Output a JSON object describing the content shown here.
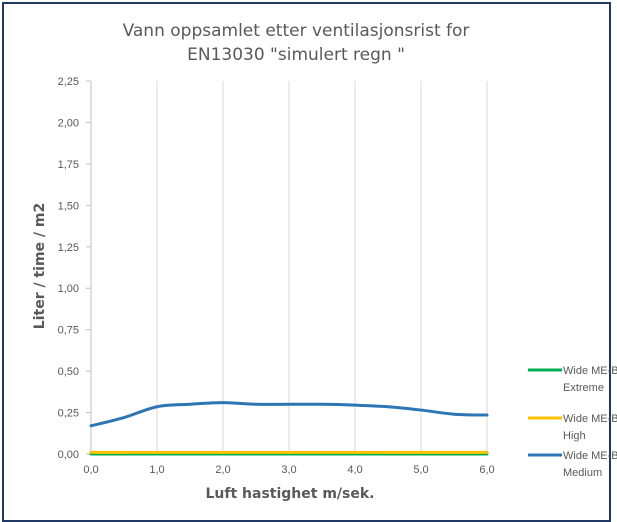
{
  "chart_data": {
    "type": "line",
    "title_lines": [
      "Vann oppsamlet etter ventilasjonsrist for",
      "EN13030 \"simulert regn \""
    ],
    "xlabel": "Luft hastighet m/sek.",
    "ylabel": "Liter / time / m2",
    "xlim": [
      0,
      6
    ],
    "ylim": [
      0,
      2.25
    ],
    "x_ticks": [
      "0,0",
      "1,0",
      "2,0",
      "3,0",
      "4,0",
      "5,0",
      "6,0"
    ],
    "y_ticks": [
      "0,00",
      "0,25",
      "0,50",
      "0,75",
      "1,00",
      "1,25",
      "1,50",
      "1,75",
      "2,00",
      "2,25"
    ],
    "grid": "vertical",
    "legend_position": "right",
    "series": [
      {
        "name_lines": [
          "Wide ME-B",
          "Extreme"
        ],
        "color": "#00b050",
        "x": [
          0,
          1,
          2,
          3,
          4,
          5,
          6
        ],
        "y": [
          0.0,
          0.0,
          0.0,
          0.0,
          0.0,
          0.0,
          0.0
        ]
      },
      {
        "name_lines": [
          "Wide ME-B",
          "High"
        ],
        "color": "#ffc000",
        "x": [
          0,
          1,
          2,
          3,
          4,
          5,
          6
        ],
        "y": [
          0.01,
          0.01,
          0.01,
          0.01,
          0.01,
          0.01,
          0.01
        ]
      },
      {
        "name_lines": [
          "Wide ME-B",
          "Medium"
        ],
        "color": "#2e75b6",
        "x": [
          0,
          0.5,
          1.0,
          1.5,
          2.0,
          2.5,
          3.0,
          3.5,
          4.0,
          4.5,
          5.0,
          5.5,
          6.0
        ],
        "y": [
          0.17,
          0.22,
          0.285,
          0.3,
          0.31,
          0.3,
          0.3,
          0.3,
          0.295,
          0.285,
          0.265,
          0.24,
          0.235
        ]
      }
    ]
  }
}
